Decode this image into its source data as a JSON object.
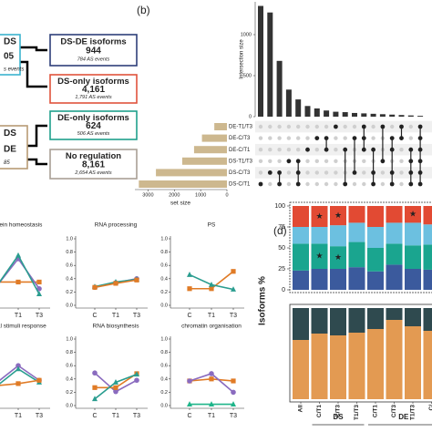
{
  "diagram": {
    "nodes": [
      {
        "lines": [
          "DS",
          "05",
          "s events"
        ],
        "color": "#3bb3cf"
      },
      {
        "lines": [
          "DS-DE isoforms",
          "944",
          "784 AS events"
        ],
        "color": "#2e3f7a"
      },
      {
        "lines": [
          "DS-only isoforms",
          "4,161",
          "1,791 AS events"
        ],
        "color": "#e0533c"
      },
      {
        "lines": [
          "DS",
          "DE",
          "85"
        ],
        "color": "#b79b74"
      },
      {
        "lines": [
          "DE-only isoforms",
          "624",
          "506 AS events"
        ],
        "color": "#1fa08c"
      },
      {
        "lines": [
          "No regulation",
          "8,161",
          "2,654 AS events"
        ],
        "color": "#a89f95"
      }
    ]
  },
  "chart_data": [
    {
      "type": "upset",
      "panel_label": "(b)",
      "ylabel": "Intersection size",
      "color": "#333333",
      "ylim": [
        0,
        1400
      ],
      "yticks": [
        0,
        500,
        1000
      ],
      "values": [
        1350,
        1270,
        680,
        330,
        210,
        130,
        100,
        75,
        60,
        55,
        45,
        40,
        35,
        30,
        25,
        20,
        15,
        10
      ],
      "sets": [
        "DE-T1/T3",
        "DE-C/T3",
        "DE-C/T1",
        "DS-T1/T3",
        "DS-C/T3",
        "DS-C/T1"
      ],
      "set_sizes": [
        480,
        950,
        1250,
        1700,
        2700,
        3350
      ],
      "set_color": "#cdb88f",
      "set_xlim": [
        0,
        3500
      ],
      "set_xticks": [
        0,
        1000,
        2000,
        3000
      ],
      "set_xlabel": "set size",
      "memberships": [
        [
          5
        ],
        [
          4
        ],
        [
          4,
          5
        ],
        [
          3
        ],
        [
          3,
          4,
          5
        ],
        [
          2
        ],
        [
          1
        ],
        [
          1,
          2
        ],
        [
          0
        ],
        [
          2,
          5
        ],
        [
          1,
          4
        ],
        [
          0,
          1,
          2
        ],
        [
          2,
          4,
          5
        ],
        [
          0,
          3
        ],
        [
          1,
          2,
          4,
          5
        ],
        [
          0,
          1
        ],
        [
          2,
          3,
          4,
          5
        ],
        [
          0,
          1,
          2,
          3,
          4,
          5
        ]
      ]
    },
    {
      "type": "line",
      "title": "tein homeostasis",
      "categories": [
        null,
        "T1",
        "T3"
      ],
      "ylim": [
        0,
        1
      ],
      "series": [
        {
          "color": "#e07b26",
          "values": [
            0.35,
            0.35,
            0.35
          ]
        },
        {
          "color": "#8a6bbf",
          "values": [
            0.3,
            0.7,
            0.25
          ]
        },
        {
          "color": "#2a9d8f",
          "values": [
            0.3,
            0.75,
            0.17
          ]
        }
      ]
    },
    {
      "type": "line",
      "title": "RNA processing",
      "categories": [
        "C",
        "T1",
        "T3"
      ],
      "ylim": [
        0,
        1
      ],
      "yticks": [
        {
          "value": 0,
          "label": "0.0"
        },
        {
          "value": 0.2,
          "label": "0.2"
        },
        {
          "value": 0.4,
          "label": "0.4"
        },
        {
          "value": 0.6,
          "label": "0.6"
        },
        {
          "value": 0.8,
          "label": "0.8"
        },
        {
          "value": 1,
          "label": "1.0"
        }
      ],
      "series": [
        {
          "color": "#8a6bbf",
          "values": [
            0.27,
            0.34,
            0.4
          ]
        },
        {
          "color": "#2a9d8f",
          "values": [
            0.28,
            0.35,
            0.39
          ]
        },
        {
          "color": "#e07b26",
          "values": [
            0.27,
            0.33,
            0.38
          ]
        }
      ]
    },
    {
      "type": "line",
      "title": "PS",
      "categories": [
        "C",
        "T1",
        "T3"
      ],
      "ylim": [
        0,
        1
      ],
      "yticks": [
        {
          "value": 0,
          "label": "0.0"
        },
        {
          "value": 0.2,
          "label": "0.2"
        },
        {
          "value": 0.4,
          "label": "0.4"
        },
        {
          "value": 0.6,
          "label": "0.6"
        },
        {
          "value": 0.8,
          "label": "0.8"
        },
        {
          "value": 1,
          "label": "1.0"
        }
      ],
      "series": [
        {
          "color": "#e07b26",
          "values": [
            0.25,
            0.25,
            0.51
          ]
        },
        {
          "color": "#2a9d8f",
          "values": [
            0.46,
            0.31,
            0.24
          ]
        }
      ]
    },
    {
      "type": "line",
      "title": "nal stimuli response",
      "categories": [
        null,
        "T1",
        "T3"
      ],
      "ylim": [
        0,
        1
      ],
      "series": [
        {
          "color": "#8a6bbf",
          "values": [
            0.35,
            0.6,
            0.38
          ]
        },
        {
          "color": "#2a9d8f",
          "values": [
            0.3,
            0.55,
            0.35
          ]
        },
        {
          "color": "#e07b26",
          "values": [
            0.3,
            0.33,
            0.38
          ]
        }
      ]
    },
    {
      "type": "line",
      "title": "RNA biosynthesis",
      "categories": [
        "C",
        "T1",
        "T3"
      ],
      "ylim": [
        0,
        1
      ],
      "yticks": [
        {
          "value": 0,
          "label": "0.0"
        },
        {
          "value": 0.2,
          "label": "0.2"
        },
        {
          "value": 0.4,
          "label": "0.4"
        },
        {
          "value": 0.6,
          "label": "0.6"
        },
        {
          "value": 0.8,
          "label": "0.8"
        },
        {
          "value": 1,
          "label": "1.0"
        }
      ],
      "series": [
        {
          "color": "#8a6bbf",
          "values": [
            0.49,
            0.21,
            0.38
          ]
        },
        {
          "color": "#e07b26",
          "values": [
            0.27,
            0.27,
            0.48
          ]
        },
        {
          "color": "#2a9d8f",
          "values": [
            0.1,
            0.35,
            0.47
          ]
        }
      ]
    },
    {
      "type": "line",
      "title": "chromatin organisation",
      "categories": [
        "C",
        "T1",
        "T3"
      ],
      "ylim": [
        0,
        1
      ],
      "yticks": [
        {
          "value": 0,
          "label": "0.0"
        },
        {
          "value": 0.2,
          "label": "0.2"
        },
        {
          "value": 0.4,
          "label": "0.4"
        },
        {
          "value": 0.6,
          "label": "0.6"
        },
        {
          "value": 0.8,
          "label": "0.8"
        },
        {
          "value": 1,
          "label": "1.0"
        }
      ],
      "series": [
        {
          "color": "#e07b26",
          "values": [
            0.37,
            0.4,
            0.37
          ]
        },
        {
          "color": "#8a6bbf",
          "values": [
            0.37,
            0.48,
            0.2
          ]
        },
        {
          "color": "#1fb58a",
          "values": [
            0.02,
            0.02,
            0.02
          ]
        }
      ]
    },
    {
      "type": "stacked_bar",
      "panel_label": "(d)",
      "ylabel": "Isoforms %",
      "ylim": [
        0,
        100
      ],
      "yticks": [
        0,
        25,
        50,
        75,
        100
      ],
      "series": [
        {
          "color": "#3b5a9d",
          "values": [
            23,
            25,
            25,
            27,
            22,
            30,
            25,
            24
          ]
        },
        {
          "color": "#1aa58f",
          "values": [
            32,
            30,
            27,
            30,
            28,
            25,
            28,
            30
          ]
        },
        {
          "color": "#6cc0e0",
          "values": [
            20,
            20,
            25,
            23,
            25,
            25,
            27,
            24
          ]
        },
        {
          "color": "#e24a33",
          "values": [
            25,
            25,
            23,
            20,
            25,
            20,
            20,
            22
          ]
        }
      ],
      "stars": [
        {
          "series": 3,
          "index": 1,
          "label": "★"
        },
        {
          "series": 1,
          "index": 1,
          "label": "★"
        },
        {
          "series": 3,
          "index": 2,
          "label": "★"
        },
        {
          "series": 1,
          "index": 2,
          "label": "★"
        },
        {
          "series": 3,
          "index": 6,
          "label": "★"
        }
      ]
    },
    {
      "type": "stacked_bar",
      "ylim": [
        0,
        100
      ],
      "categories": [
        "All",
        "C/T1",
        "C/T3",
        "T1/T3",
        "C/T1",
        "C/T3",
        "T1/T3",
        "C/"
      ],
      "groups": [
        {
          "label": "DS",
          "from": 1,
          "to": 3
        },
        {
          "label": "DE",
          "from": 4,
          "to": 7
        }
      ],
      "series": [
        {
          "color": "#e39a52",
          "values": [
            65,
            72,
            70,
            73,
            77,
            87,
            80,
            75
          ]
        },
        {
          "color": "#2f4a4f",
          "values": [
            35,
            28,
            30,
            27,
            23,
            13,
            20,
            25
          ]
        }
      ]
    }
  ]
}
